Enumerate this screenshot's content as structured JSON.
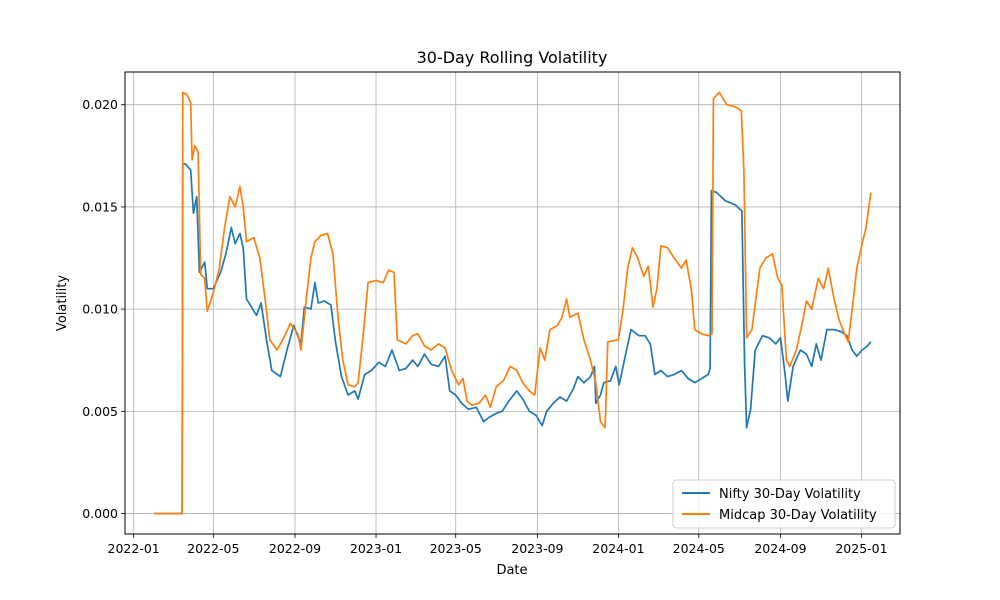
{
  "chart_data": {
    "type": "line",
    "title": "30-Day Rolling Volatility",
    "xlabel": "Date",
    "ylabel": "Volatility",
    "xlim": [
      "2021-12-19",
      "2025-02-28"
    ],
    "ylim": [
      -0.001,
      0.0216
    ],
    "x_ticks": [
      "2022-01",
      "2022-05",
      "2022-09",
      "2023-01",
      "2023-05",
      "2023-09",
      "2024-01",
      "2024-05",
      "2024-09",
      "2025-01"
    ],
    "y_ticks": [
      "0.000",
      "0.005",
      "0.010",
      "0.015",
      "0.020"
    ],
    "y_tick_values": [
      0.0,
      0.005,
      0.01,
      0.015,
      0.02
    ],
    "grid": true,
    "legend_position": "lower-right",
    "series": [
      {
        "name": "Nifty 30-Day Volatility",
        "color": "#1f77b4",
        "points": [
          [
            "2022-02-01",
            0.0
          ],
          [
            "2022-03-15",
            0.0
          ],
          [
            "2022-03-16",
            0.0171
          ],
          [
            "2022-03-20",
            0.0171
          ],
          [
            "2022-03-28",
            0.0168
          ],
          [
            "2022-04-01",
            0.0147
          ],
          [
            "2022-04-06",
            0.0155
          ],
          [
            "2022-04-10",
            0.0118
          ],
          [
            "2022-04-18",
            0.0123
          ],
          [
            "2022-04-22",
            0.011
          ],
          [
            "2022-05-01",
            0.011
          ],
          [
            "2022-05-12",
            0.0118
          ],
          [
            "2022-05-20",
            0.0127
          ],
          [
            "2022-05-28",
            0.014
          ],
          [
            "2022-06-03",
            0.0132
          ],
          [
            "2022-06-10",
            0.0137
          ],
          [
            "2022-06-15",
            0.013
          ],
          [
            "2022-06-20",
            0.0105
          ],
          [
            "2022-07-05",
            0.0097
          ],
          [
            "2022-07-12",
            0.0103
          ],
          [
            "2022-07-20",
            0.0085
          ],
          [
            "2022-07-28",
            0.007
          ],
          [
            "2022-08-10",
            0.0067
          ],
          [
            "2022-08-20",
            0.008
          ],
          [
            "2022-08-30",
            0.0092
          ],
          [
            "2022-09-10",
            0.0083
          ],
          [
            "2022-09-15",
            0.0101
          ],
          [
            "2022-09-25",
            0.01
          ],
          [
            "2022-10-01",
            0.0113
          ],
          [
            "2022-10-06",
            0.0103
          ],
          [
            "2022-10-15",
            0.0104
          ],
          [
            "2022-10-25",
            0.0102
          ],
          [
            "2022-11-01",
            0.0084
          ],
          [
            "2022-11-10",
            0.0067
          ],
          [
            "2022-11-20",
            0.0058
          ],
          [
            "2022-11-30",
            0.006
          ],
          [
            "2022-12-05",
            0.0056
          ],
          [
            "2022-12-15",
            0.0068
          ],
          [
            "2022-12-25",
            0.007
          ],
          [
            "2023-01-05",
            0.0074
          ],
          [
            "2023-01-15",
            0.0072
          ],
          [
            "2023-01-25",
            0.008
          ],
          [
            "2023-02-05",
            0.007
          ],
          [
            "2023-02-15",
            0.0071
          ],
          [
            "2023-02-25",
            0.0075
          ],
          [
            "2023-03-05",
            0.0072
          ],
          [
            "2023-03-15",
            0.0078
          ],
          [
            "2023-03-25",
            0.0073
          ],
          [
            "2023-04-05",
            0.0072
          ],
          [
            "2023-04-15",
            0.0077
          ],
          [
            "2023-04-22",
            0.006
          ],
          [
            "2023-05-01",
            0.0058
          ],
          [
            "2023-05-10",
            0.0054
          ],
          [
            "2023-05-20",
            0.0051
          ],
          [
            "2023-06-01",
            0.0052
          ],
          [
            "2023-06-12",
            0.0045
          ],
          [
            "2023-06-20",
            0.0047
          ],
          [
            "2023-07-01",
            0.0049
          ],
          [
            "2023-07-10",
            0.005
          ],
          [
            "2023-07-20",
            0.0055
          ],
          [
            "2023-08-01",
            0.006
          ],
          [
            "2023-08-10",
            0.0056
          ],
          [
            "2023-08-20",
            0.005
          ],
          [
            "2023-08-30",
            0.0048
          ],
          [
            "2023-09-08",
            0.0043
          ],
          [
            "2023-09-15",
            0.005
          ],
          [
            "2023-09-25",
            0.0054
          ],
          [
            "2023-10-05",
            0.0057
          ],
          [
            "2023-10-15",
            0.0055
          ],
          [
            "2023-10-25",
            0.0061
          ],
          [
            "2023-11-01",
            0.0067
          ],
          [
            "2023-11-10",
            0.0064
          ],
          [
            "2023-11-20",
            0.0067
          ],
          [
            "2023-11-26",
            0.0072
          ],
          [
            "2023-11-28",
            0.0054
          ],
          [
            "2023-12-05",
            0.0058
          ],
          [
            "2023-12-10",
            0.0064
          ],
          [
            "2023-12-20",
            0.0065
          ],
          [
            "2023-12-28",
            0.0072
          ],
          [
            "2024-01-02",
            0.0063
          ],
          [
            "2024-01-10",
            0.0075
          ],
          [
            "2024-01-20",
            0.009
          ],
          [
            "2024-02-01",
            0.0087
          ],
          [
            "2024-02-10",
            0.0087
          ],
          [
            "2024-02-18",
            0.0083
          ],
          [
            "2024-02-25",
            0.0068
          ],
          [
            "2024-03-05",
            0.007
          ],
          [
            "2024-03-15",
            0.0067
          ],
          [
            "2024-03-25",
            0.0068
          ],
          [
            "2024-04-05",
            0.007
          ],
          [
            "2024-04-15",
            0.0066
          ],
          [
            "2024-04-25",
            0.0064
          ],
          [
            "2024-05-05",
            0.0066
          ],
          [
            "2024-05-15",
            0.0068
          ],
          [
            "2024-05-18",
            0.0071
          ],
          [
            "2024-05-20",
            0.0158
          ],
          [
            "2024-05-28",
            0.0157
          ],
          [
            "2024-06-10",
            0.0153
          ],
          [
            "2024-06-25",
            0.0151
          ],
          [
            "2024-07-05",
            0.0148
          ],
          [
            "2024-07-09",
            0.0073
          ],
          [
            "2024-07-12",
            0.0042
          ],
          [
            "2024-07-18",
            0.0051
          ],
          [
            "2024-07-25",
            0.008
          ],
          [
            "2024-08-05",
            0.0087
          ],
          [
            "2024-08-15",
            0.0086
          ],
          [
            "2024-08-25",
            0.0083
          ],
          [
            "2024-09-01",
            0.0086
          ],
          [
            "2024-09-08",
            0.0068
          ],
          [
            "2024-09-12",
            0.0055
          ],
          [
            "2024-09-20",
            0.0072
          ],
          [
            "2024-10-01",
            0.008
          ],
          [
            "2024-10-10",
            0.0078
          ],
          [
            "2024-10-18",
            0.0072
          ],
          [
            "2024-10-25",
            0.0083
          ],
          [
            "2024-11-01",
            0.0075
          ],
          [
            "2024-11-10",
            0.009
          ],
          [
            "2024-11-20",
            0.009
          ],
          [
            "2024-12-01",
            0.0089
          ],
          [
            "2024-12-10",
            0.0087
          ],
          [
            "2024-12-18",
            0.008
          ],
          [
            "2024-12-25",
            0.0077
          ],
          [
            "2025-01-02",
            0.008
          ],
          [
            "2025-01-10",
            0.0082
          ],
          [
            "2025-01-15",
            0.0084
          ]
        ]
      },
      {
        "name": "Midcap 30-Day Volatility",
        "color": "#ff7f0e",
        "points": [
          [
            "2022-02-01",
            0.0
          ],
          [
            "2022-03-15",
            0.0
          ],
          [
            "2022-03-16",
            0.0206
          ],
          [
            "2022-03-22",
            0.0205
          ],
          [
            "2022-03-28",
            0.0201
          ],
          [
            "2022-03-30",
            0.0173
          ],
          [
            "2022-04-03",
            0.018
          ],
          [
            "2022-04-08",
            0.0177
          ],
          [
            "2022-04-12",
            0.0117
          ],
          [
            "2022-04-18",
            0.0115
          ],
          [
            "2022-04-22",
            0.0099
          ],
          [
            "2022-05-01",
            0.0108
          ],
          [
            "2022-05-10",
            0.012
          ],
          [
            "2022-05-18",
            0.014
          ],
          [
            "2022-05-26",
            0.0155
          ],
          [
            "2022-06-03",
            0.015
          ],
          [
            "2022-06-10",
            0.016
          ],
          [
            "2022-06-15",
            0.015
          ],
          [
            "2022-06-20",
            0.0133
          ],
          [
            "2022-07-01",
            0.0135
          ],
          [
            "2022-07-10",
            0.0125
          ],
          [
            "2022-07-18",
            0.0105
          ],
          [
            "2022-07-25",
            0.0085
          ],
          [
            "2022-08-05",
            0.008
          ],
          [
            "2022-08-15",
            0.0086
          ],
          [
            "2022-08-25",
            0.0093
          ],
          [
            "2022-09-05",
            0.0088
          ],
          [
            "2022-09-10",
            0.008
          ],
          [
            "2022-09-18",
            0.0105
          ],
          [
            "2022-09-25",
            0.0125
          ],
          [
            "2022-10-01",
            0.0133
          ],
          [
            "2022-10-10",
            0.0136
          ],
          [
            "2022-10-20",
            0.0137
          ],
          [
            "2022-10-28",
            0.0127
          ],
          [
            "2022-11-05",
            0.0095
          ],
          [
            "2022-11-12",
            0.0075
          ],
          [
            "2022-11-20",
            0.0063
          ],
          [
            "2022-11-30",
            0.0062
          ],
          [
            "2022-12-05",
            0.0064
          ],
          [
            "2022-12-12",
            0.0085
          ],
          [
            "2022-12-20",
            0.0113
          ],
          [
            "2023-01-01",
            0.0114
          ],
          [
            "2023-01-12",
            0.0113
          ],
          [
            "2023-01-20",
            0.0119
          ],
          [
            "2023-01-28",
            0.0118
          ],
          [
            "2023-02-02",
            0.0085
          ],
          [
            "2023-02-15",
            0.0083
          ],
          [
            "2023-02-25",
            0.0087
          ],
          [
            "2023-03-05",
            0.0088
          ],
          [
            "2023-03-15",
            0.0082
          ],
          [
            "2023-03-25",
            0.008
          ],
          [
            "2023-04-05",
            0.0083
          ],
          [
            "2023-04-15",
            0.0081
          ],
          [
            "2023-04-25",
            0.007
          ],
          [
            "2023-05-05",
            0.0063
          ],
          [
            "2023-05-12",
            0.0066
          ],
          [
            "2023-05-18",
            0.0055
          ],
          [
            "2023-05-25",
            0.0053
          ],
          [
            "2023-06-05",
            0.0054
          ],
          [
            "2023-06-15",
            0.0058
          ],
          [
            "2023-06-22",
            0.0052
          ],
          [
            "2023-07-01",
            0.0062
          ],
          [
            "2023-07-12",
            0.0065
          ],
          [
            "2023-07-22",
            0.0072
          ],
          [
            "2023-08-01",
            0.007
          ],
          [
            "2023-08-10",
            0.0064
          ],
          [
            "2023-08-20",
            0.006
          ],
          [
            "2023-08-28",
            0.0058
          ],
          [
            "2023-09-05",
            0.0081
          ],
          [
            "2023-09-12",
            0.0075
          ],
          [
            "2023-09-20",
            0.009
          ],
          [
            "2023-10-01",
            0.0092
          ],
          [
            "2023-10-08",
            0.0096
          ],
          [
            "2023-10-15",
            0.0105
          ],
          [
            "2023-10-20",
            0.0096
          ],
          [
            "2023-11-01",
            0.0098
          ],
          [
            "2023-11-10",
            0.0085
          ],
          [
            "2023-11-20",
            0.0075
          ],
          [
            "2023-11-28",
            0.0064
          ],
          [
            "2023-12-05",
            0.0045
          ],
          [
            "2023-12-12",
            0.0042
          ],
          [
            "2023-12-16",
            0.0084
          ],
          [
            "2024-01-01",
            0.0085
          ],
          [
            "2024-01-08",
            0.01
          ],
          [
            "2024-01-15",
            0.012
          ],
          [
            "2024-01-22",
            0.013
          ],
          [
            "2024-01-30",
            0.0125
          ],
          [
            "2024-02-08",
            0.0116
          ],
          [
            "2024-02-15",
            0.0121
          ],
          [
            "2024-02-22",
            0.0101
          ],
          [
            "2024-02-28",
            0.011
          ],
          [
            "2024-03-05",
            0.0131
          ],
          [
            "2024-03-15",
            0.013
          ],
          [
            "2024-03-25",
            0.0125
          ],
          [
            "2024-04-05",
            0.012
          ],
          [
            "2024-04-12",
            0.0124
          ],
          [
            "2024-04-20",
            0.0109
          ],
          [
            "2024-04-25",
            0.009
          ],
          [
            "2024-05-05",
            0.0088
          ],
          [
            "2024-05-15",
            0.0087
          ],
          [
            "2024-05-21",
            0.0088
          ],
          [
            "2024-05-23",
            0.0203
          ],
          [
            "2024-06-01",
            0.0206
          ],
          [
            "2024-06-12",
            0.02
          ],
          [
            "2024-06-25",
            0.0199
          ],
          [
            "2024-07-04",
            0.0197
          ],
          [
            "2024-07-08",
            0.0168
          ],
          [
            "2024-07-12",
            0.0086
          ],
          [
            "2024-07-20",
            0.009
          ],
          [
            "2024-08-01",
            0.012
          ],
          [
            "2024-08-10",
            0.0125
          ],
          [
            "2024-08-20",
            0.0127
          ],
          [
            "2024-08-28",
            0.0115
          ],
          [
            "2024-09-03",
            0.0112
          ],
          [
            "2024-09-10",
            0.0075
          ],
          [
            "2024-09-15",
            0.0072
          ],
          [
            "2024-09-25",
            0.008
          ],
          [
            "2024-10-05",
            0.0095
          ],
          [
            "2024-10-10",
            0.0104
          ],
          [
            "2024-10-18",
            0.01
          ],
          [
            "2024-10-28",
            0.0115
          ],
          [
            "2024-11-05",
            0.011
          ],
          [
            "2024-11-12",
            0.012
          ],
          [
            "2024-11-20",
            0.0106
          ],
          [
            "2024-11-28",
            0.0095
          ],
          [
            "2024-12-05",
            0.0089
          ],
          [
            "2024-12-12",
            0.0084
          ],
          [
            "2024-12-18",
            0.01
          ],
          [
            "2024-12-25",
            0.012
          ],
          [
            "2025-01-02",
            0.0132
          ],
          [
            "2025-01-08",
            0.014
          ],
          [
            "2025-01-15",
            0.0157
          ]
        ]
      }
    ]
  }
}
